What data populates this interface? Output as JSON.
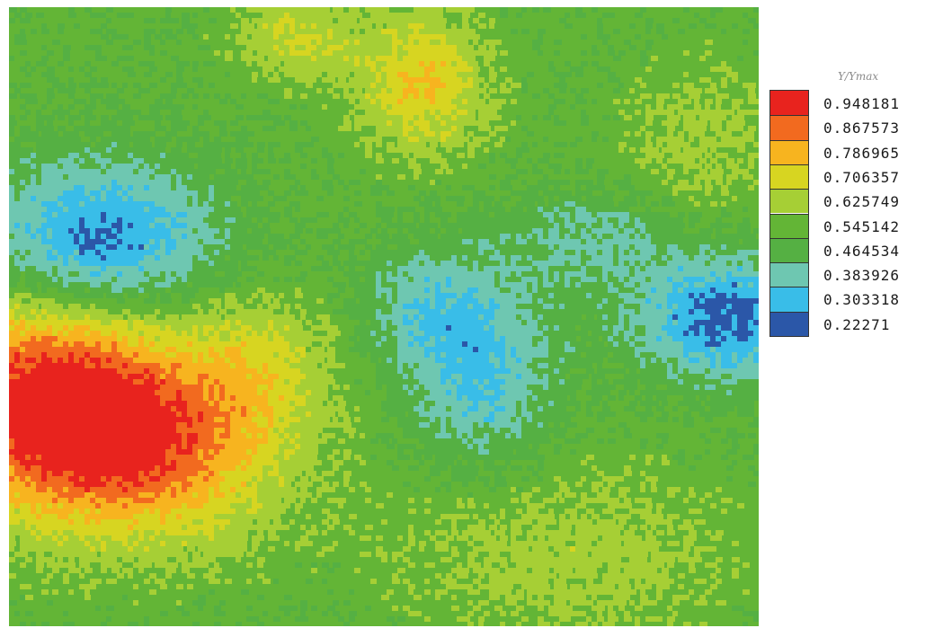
{
  "chart_data": {
    "type": "heatmap",
    "title": "",
    "xlabel": "",
    "ylabel": "",
    "colorbar": {
      "title": "Y/Ymax",
      "levels": [
        "0.948181",
        "0.867573",
        "0.786965",
        "0.706357",
        "0.625749",
        "0.545142",
        "0.464534",
        "0.383926",
        "0.303318",
        "0.22271"
      ],
      "level_values": [
        0.948181,
        0.867573,
        0.786965,
        0.706357,
        0.625749,
        0.545142,
        0.464534,
        0.383926,
        0.303318,
        0.22271
      ],
      "colors": [
        "#e8231e",
        "#f26a1f",
        "#f7b41f",
        "#d7d521",
        "#a6cf35",
        "#63b536",
        "#55b043",
        "#6ec7b1",
        "#39bde8",
        "#2b57a8"
      ]
    },
    "background_level": 0.545142,
    "grid": false,
    "legend_placement": "right",
    "features": [
      {
        "kind": "high",
        "peak_value": 0.948181,
        "location": "left-middle"
      },
      {
        "kind": "high",
        "peak_value": 0.786965,
        "location": "top-center"
      },
      {
        "kind": "low",
        "peak_value": 0.22271,
        "location": "upper-left"
      },
      {
        "kind": "low",
        "peak_value": 0.22271,
        "location": "right-middle"
      },
      {
        "kind": "low",
        "peak_value": 0.383926,
        "location": "center"
      }
    ]
  }
}
